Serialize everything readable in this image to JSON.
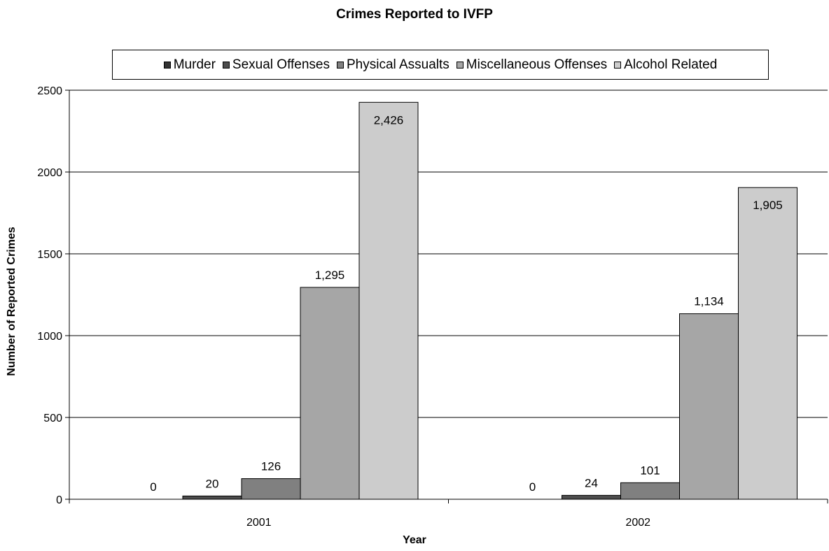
{
  "chart_data": {
    "type": "bar",
    "title": "Crimes Reported to IVFP",
    "xlabel": "Year",
    "ylabel": "Number of Reported Crimes",
    "categories": [
      "2001",
      "2002"
    ],
    "ylim": [
      0,
      2500
    ],
    "yticks": [
      0,
      500,
      1000,
      1500,
      2000,
      2500
    ],
    "grid": true,
    "legend_position": "top",
    "series": [
      {
        "name": "Murder",
        "values": [
          0,
          0
        ],
        "labels": [
          "0",
          "0"
        ],
        "color": "#333333"
      },
      {
        "name": "Sexual Offenses",
        "values": [
          20,
          24
        ],
        "labels": [
          "20",
          "24"
        ],
        "color": "#4d4d4d"
      },
      {
        "name": "Physical Assualts",
        "values": [
          126,
          101
        ],
        "labels": [
          "126",
          "101"
        ],
        "color": "#808080"
      },
      {
        "name": "Miscellaneous Offenses",
        "values": [
          1295,
          1134
        ],
        "labels": [
          "1,295",
          "1,134"
        ],
        "color": "#a6a6a6"
      },
      {
        "name": "Alcohol Related",
        "values": [
          2426,
          1905
        ],
        "labels": [
          "2,426",
          "1,905"
        ],
        "color": "#cccccc"
      }
    ]
  }
}
